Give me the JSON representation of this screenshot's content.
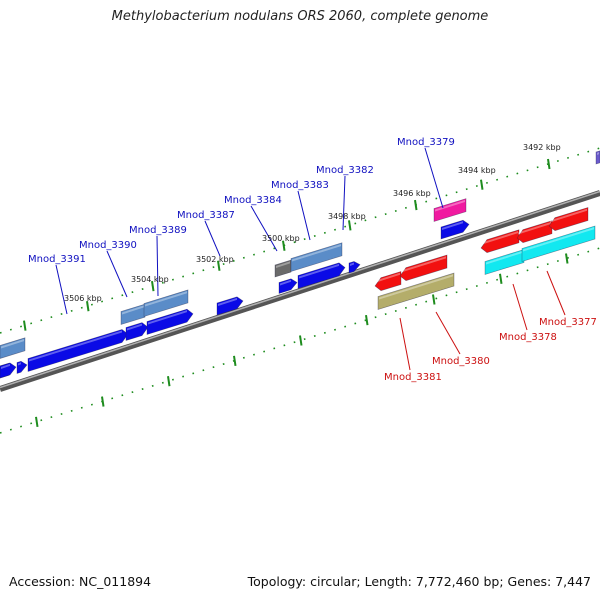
{
  "title": "Methylobacterium nodulans ORS 2060, complete genome",
  "footer": {
    "accession": "Accession: NC_011894",
    "summary": "Topology: circular; Length: 7,772,460 bp; Genes: 7,447"
  },
  "colors": {
    "backbone": "#7a7a7a",
    "tick": "#1e8c1e",
    "forward_label": "#1010c0",
    "reverse_label": "#cc1111",
    "blue": "#0a0ae6",
    "steel": "#5a8cc8",
    "gray": "#6a6a6a",
    "magenta": "#f01aa0",
    "red": "#f21010",
    "cyan": "#12e8f0",
    "olive": "#b4ad6a",
    "purple": "#6a5acd"
  },
  "kbp_labels": [
    "3492 kbp",
    "3494 kbp",
    "3496 kbp",
    "3498 kbp",
    "3500 kbp",
    "3502 kbp",
    "3504 kbp",
    "3506 kbp"
  ],
  "gene_labels_forward": [
    "Mnod_3379",
    "Mnod_3382",
    "Mnod_3383",
    "Mnod_3384",
    "Mnod_3387",
    "Mnod_3389",
    "Mnod_3390",
    "Mnod_3391"
  ],
  "gene_labels_reverse": [
    "Mnod_3377",
    "Mnod_3378",
    "Mnod_3380",
    "Mnod_3381"
  ]
}
